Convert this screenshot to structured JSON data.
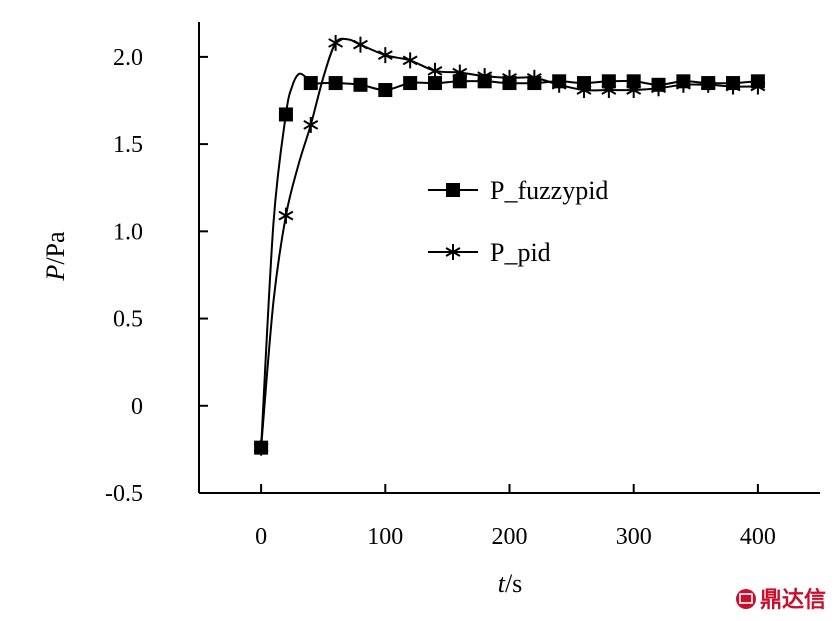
{
  "chart_data": {
    "type": "line",
    "title": "",
    "xlabel_var": "t",
    "xlabel_unit": "/s",
    "ylabel_var": "P",
    "ylabel_unit": "/Pa",
    "xlim": [
      -50,
      450
    ],
    "ylim": [
      -0.5,
      2.2
    ],
    "x_ticks": [
      0,
      100,
      200,
      300,
      400
    ],
    "y_ticks": [
      -0.5,
      0,
      0.5,
      1.0,
      1.5,
      2.0
    ],
    "y_tick_labels": [
      "-0.5",
      "0",
      "0.5",
      "1.0",
      "1.5",
      "2.0"
    ],
    "legend_position": "center-right",
    "series": [
      {
        "name": "P_fuzzypid",
        "marker": "square",
        "x": [
          0,
          20,
          40,
          60,
          80,
          100,
          120,
          140,
          160,
          180,
          200,
          220,
          240,
          260,
          280,
          300,
          320,
          340,
          360,
          380,
          400
        ],
        "y": [
          -0.24,
          1.67,
          1.85,
          1.85,
          1.84,
          1.81,
          1.85,
          1.85,
          1.86,
          1.86,
          1.85,
          1.85,
          1.86,
          1.85,
          1.86,
          1.86,
          1.84,
          1.86,
          1.85,
          1.85,
          1.86
        ],
        "curve_x": [
          0,
          10,
          20,
          25,
          30,
          35,
          40,
          50,
          60,
          80,
          100,
          120,
          140,
          160,
          180,
          200,
          220,
          240,
          260,
          280,
          300,
          320,
          340,
          360,
          380,
          400
        ],
        "curve_y": [
          -0.24,
          1.05,
          1.67,
          1.83,
          1.9,
          1.89,
          1.85,
          1.85,
          1.85,
          1.84,
          1.81,
          1.85,
          1.85,
          1.86,
          1.86,
          1.85,
          1.85,
          1.86,
          1.85,
          1.86,
          1.86,
          1.84,
          1.86,
          1.85,
          1.85,
          1.86
        ]
      },
      {
        "name": "P_pid",
        "marker": "asterisk",
        "x": [
          0,
          20,
          40,
          60,
          80,
          100,
          120,
          140,
          160,
          180,
          200,
          220,
          240,
          260,
          280,
          300,
          320,
          340,
          360,
          380,
          400
        ],
        "y": [
          -0.24,
          1.09,
          1.61,
          2.08,
          2.07,
          2.01,
          1.98,
          1.92,
          1.91,
          1.89,
          1.88,
          1.88,
          1.84,
          1.81,
          1.81,
          1.81,
          1.82,
          1.84,
          1.84,
          1.83,
          1.83
        ],
        "curve_x": [
          0,
          10,
          20,
          30,
          40,
          50,
          60,
          70,
          80,
          100,
          120,
          140,
          160,
          180,
          200,
          220,
          240,
          260,
          280,
          300,
          320,
          340,
          360,
          380,
          400
        ],
        "curve_y": [
          -0.24,
          0.6,
          1.09,
          1.38,
          1.61,
          1.88,
          2.08,
          2.1,
          2.07,
          2.01,
          1.98,
          1.92,
          1.91,
          1.89,
          1.88,
          1.88,
          1.84,
          1.81,
          1.81,
          1.81,
          1.82,
          1.84,
          1.84,
          1.83,
          1.83
        ]
      }
    ]
  },
  "watermark": {
    "text": "鼎达信",
    "color": "#c8102e"
  }
}
